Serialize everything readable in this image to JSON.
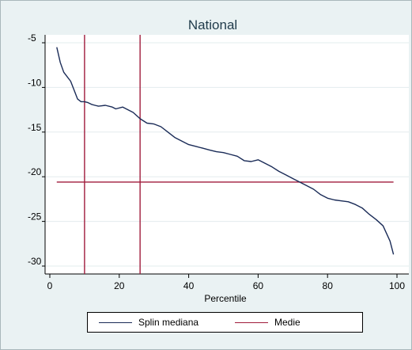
{
  "chart_data": {
    "type": "line",
    "title": "National",
    "xlabel": "Percentile",
    "ylabel": "",
    "xlim": [
      0,
      102
    ],
    "ylim": [
      -31,
      -4
    ],
    "x_ticks": [
      0,
      20,
      40,
      60,
      80,
      100
    ],
    "y_ticks": [
      -5,
      -10,
      -15,
      -20,
      -25,
      -30
    ],
    "grid": true,
    "legend_position": "bottom",
    "series": [
      {
        "name": "Splin mediana",
        "color": "#1a2b57",
        "x": [
          2,
          3,
          4,
          5,
          6,
          7,
          8,
          9,
          10,
          11,
          12,
          13,
          14,
          16,
          18,
          19,
          21,
          22,
          24,
          26,
          28,
          30,
          32,
          34,
          36,
          38,
          40,
          42,
          44,
          46,
          48,
          50,
          52,
          54,
          56,
          58,
          60,
          62,
          64,
          66,
          68,
          70,
          72,
          74,
          76,
          78,
          80,
          82,
          84,
          86,
          88,
          90,
          92,
          94,
          96,
          98,
          99
        ],
        "y": [
          -5.5,
          -7.2,
          -8.3,
          -8.8,
          -9.3,
          -10.3,
          -11.3,
          -11.6,
          -11.6,
          -11.7,
          -11.9,
          -12.0,
          -12.1,
          -12.0,
          -12.2,
          -12.4,
          -12.2,
          -12.4,
          -12.8,
          -13.5,
          -14.0,
          -14.1,
          -14.4,
          -15.0,
          -15.6,
          -16.0,
          -16.4,
          -16.6,
          -16.8,
          -17.0,
          -17.2,
          -17.3,
          -17.5,
          -17.7,
          -18.2,
          -18.3,
          -18.1,
          -18.5,
          -18.9,
          -19.4,
          -19.8,
          -20.2,
          -20.6,
          -21.0,
          -21.4,
          -22.0,
          -22.4,
          -22.6,
          -22.7,
          -22.8,
          -23.1,
          -23.5,
          -24.2,
          -24.8,
          -25.5,
          -27.2,
          -28.7
        ]
      },
      {
        "name": "Medie",
        "color": "#a01c3c",
        "hline": -20.6,
        "x_range": [
          2,
          99
        ],
        "vlines": [
          10,
          26
        ]
      }
    ]
  }
}
